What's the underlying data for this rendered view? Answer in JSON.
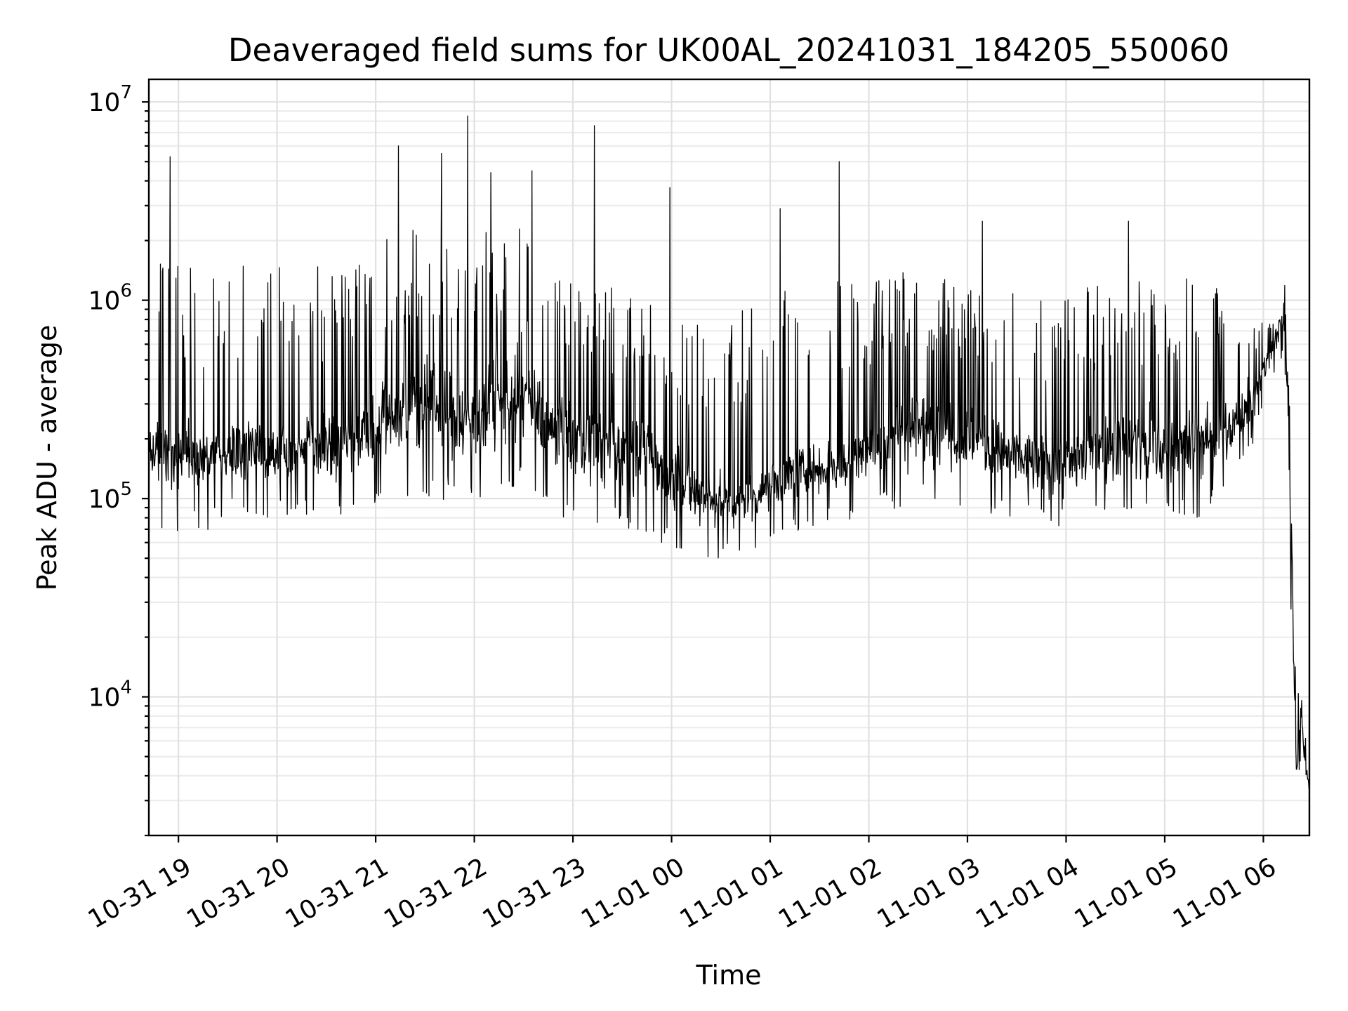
{
  "chart_data": {
    "type": "line",
    "title": "Deaveraged field sums for UK00AL_20241031_184205_550060",
    "xlabel": "Time",
    "ylabel": "Peak ADU - average",
    "y_scale": "log",
    "ylim": [
      2000,
      13000000
    ],
    "xlim": [
      "2024-10-31 18:42",
      "2024-11-01 06:28"
    ],
    "x_ticks": [
      {
        "time": "2024-10-31 19:00",
        "label": "10-31 19"
      },
      {
        "time": "2024-10-31 20:00",
        "label": "10-31 20"
      },
      {
        "time": "2024-10-31 21:00",
        "label": "10-31 21"
      },
      {
        "time": "2024-10-31 22:00",
        "label": "10-31 22"
      },
      {
        "time": "2024-10-31 23:00",
        "label": "10-31 23"
      },
      {
        "time": "2024-11-01 00:00",
        "label": "11-01 00"
      },
      {
        "time": "2024-11-01 01:00",
        "label": "11-01 01"
      },
      {
        "time": "2024-11-01 02:00",
        "label": "11-01 02"
      },
      {
        "time": "2024-11-01 03:00",
        "label": "11-01 03"
      },
      {
        "time": "2024-11-01 04:00",
        "label": "11-01 04"
      },
      {
        "time": "2024-11-01 05:00",
        "label": "11-01 05"
      },
      {
        "time": "2024-11-01 06:00",
        "label": "11-01 06"
      }
    ],
    "y_ticks": [
      {
        "value": 10000,
        "base": "10",
        "exp": "4"
      },
      {
        "value": 100000,
        "base": "10",
        "exp": "5"
      },
      {
        "value": 1000000,
        "base": "10",
        "exp": "6"
      },
      {
        "value": 10000000,
        "base": "10",
        "exp": "7"
      }
    ],
    "grid": true,
    "legend": "none",
    "line_color": "#000000",
    "series": [
      {
        "x": [
          "2024-10-31 18:42",
          "2024-10-31 18:55",
          "2024-10-31 19:20",
          "2024-10-31 19:45",
          "2024-10-31 20:15",
          "2024-10-31 20:45",
          "2024-10-31 21:00",
          "2024-10-31 21:15",
          "2024-10-31 21:30",
          "2024-10-31 21:45",
          "2024-10-31 22:00",
          "2024-10-31 22:15",
          "2024-10-31 22:30",
          "2024-10-31 22:45",
          "2024-10-31 23:00",
          "2024-10-31 23:20",
          "2024-10-31 23:40",
          "2024-11-01 00:00",
          "2024-11-01 00:20",
          "2024-11-01 00:40",
          "2024-11-01 01:00",
          "2024-11-01 01:20",
          "2024-11-01 01:40",
          "2024-11-01 02:00",
          "2024-11-01 02:20",
          "2024-11-01 02:40",
          "2024-11-01 03:00",
          "2024-11-01 03:20",
          "2024-11-01 03:40",
          "2024-11-01 04:00",
          "2024-11-01 04:20",
          "2024-11-01 04:40",
          "2024-11-01 05:00",
          "2024-11-01 05:20",
          "2024-11-01 05:40",
          "2024-11-01 05:55",
          "2024-11-01 06:05",
          "2024-11-01 06:12",
          "2024-11-01 06:15",
          "2024-11-01 06:18",
          "2024-11-01 06:20",
          "2024-11-01 06:23",
          "2024-11-01 06:25",
          "2024-11-01 06:28"
        ],
        "values": [
          180000,
          150000,
          160000,
          170000,
          180000,
          200000,
          220000,
          280000,
          300000,
          270000,
          250000,
          300000,
          350000,
          220000,
          200000,
          180000,
          170000,
          130000,
          100000,
          90000,
          120000,
          140000,
          150000,
          170000,
          220000,
          230000,
          200000,
          170000,
          150000,
          150000,
          180000,
          190000,
          170000,
          190000,
          220000,
          350000,
          550000,
          800000,
          300000,
          30000,
          4000,
          8000,
          5000,
          3500
        ],
        "envelope_low": [
          70000,
          65000,
          70000,
          75000,
          80000,
          80000,
          85000,
          95000,
          100000,
          95000,
          90000,
          100000,
          110000,
          80000,
          75000,
          70000,
          65000,
          55000,
          50000,
          50000,
          60000,
          70000,
          75000,
          80000,
          90000,
          90000,
          85000,
          80000,
          75000,
          70000,
          75000,
          80000,
          75000,
          80000,
          100000,
          200000,
          400000,
          500000,
          100000,
          10000,
          3000,
          5000,
          3500,
          3200
        ],
        "envelope_high": [
          1600000,
          1500000,
          1500000,
          1500000,
          1500000,
          1500000,
          1800000,
          2500000,
          3000000,
          2500000,
          2000000,
          2500000,
          2500000,
          1500000,
          1500000,
          1300000,
          1000000,
          900000,
          900000,
          900000,
          1100000,
          1200000,
          1300000,
          1300000,
          1400000,
          1400000,
          1300000,
          1200000,
          1100000,
          1200000,
          1400000,
          1400000,
          1300000,
          1300000,
          1200000,
          800000,
          1000000,
          1300000,
          1000000,
          70000,
          9000,
          23000,
          9000,
          4000
        ],
        "notable_peaks": [
          {
            "x": "2024-10-31 18:55",
            "y": 5300000
          },
          {
            "x": "2024-10-31 21:14",
            "y": 6000000
          },
          {
            "x": "2024-10-31 21:40",
            "y": 5500000
          },
          {
            "x": "2024-10-31 21:56",
            "y": 8500000
          },
          {
            "x": "2024-10-31 22:10",
            "y": 4400000
          },
          {
            "x": "2024-10-31 22:35",
            "y": 4500000
          },
          {
            "x": "2024-10-31 23:13",
            "y": 7600000
          },
          {
            "x": "2024-10-31 23:59",
            "y": 3700000
          },
          {
            "x": "2024-11-01 01:06",
            "y": 2900000
          },
          {
            "x": "2024-11-01 01:42",
            "y": 5000000
          },
          {
            "x": "2024-11-01 03:09",
            "y": 2500000
          },
          {
            "x": "2024-11-01 04:38",
            "y": 2500000
          }
        ]
      }
    ]
  }
}
